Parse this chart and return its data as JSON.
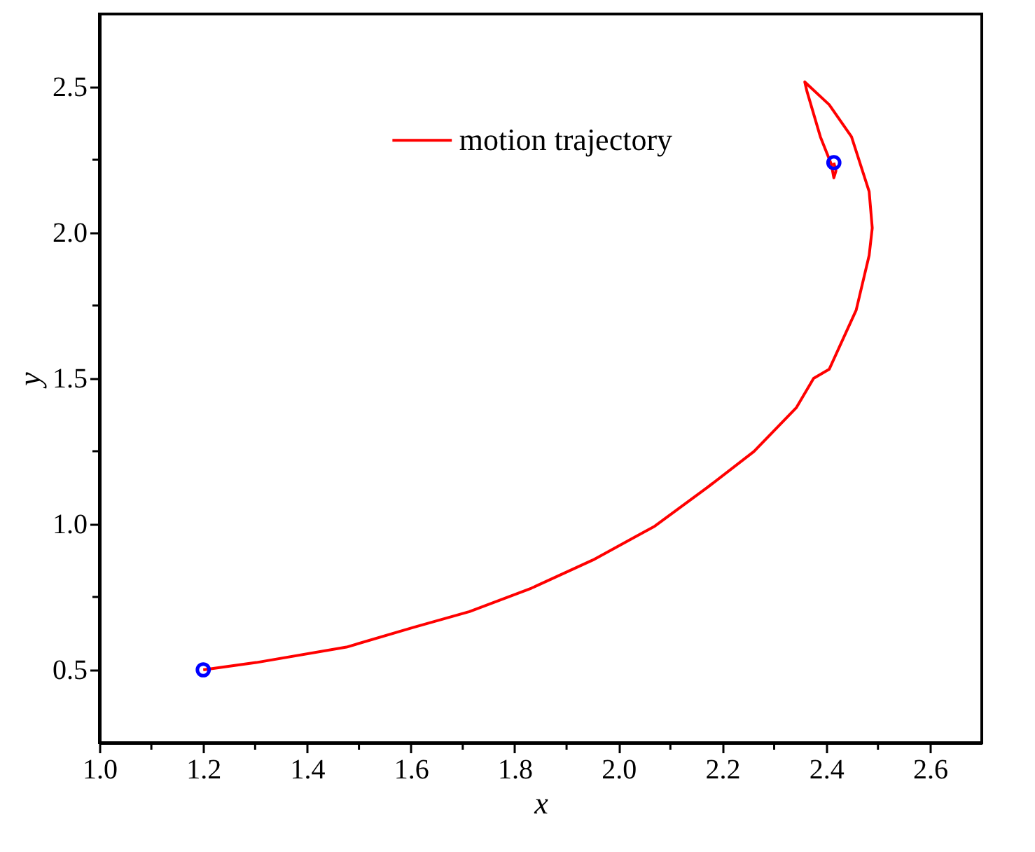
{
  "chart_data": {
    "type": "line",
    "xlabel": "x",
    "ylabel": "y",
    "xlim": [
      1.0,
      2.7
    ],
    "ylim": [
      0.25,
      2.75
    ],
    "xticks": [
      {
        "value": 1.0,
        "label": "1.0"
      },
      {
        "value": 1.1,
        "label": null
      },
      {
        "value": 1.2,
        "label": "1.2"
      },
      {
        "value": 1.3,
        "label": null
      },
      {
        "value": 1.4,
        "label": "1.4"
      },
      {
        "value": 1.5,
        "label": null
      },
      {
        "value": 1.6,
        "label": "1.6"
      },
      {
        "value": 1.7,
        "label": null
      },
      {
        "value": 1.8,
        "label": "1.8"
      },
      {
        "value": 1.9,
        "label": null
      },
      {
        "value": 2.0,
        "label": "2.0"
      },
      {
        "value": 2.1,
        "label": null
      },
      {
        "value": 2.2,
        "label": "2.2"
      },
      {
        "value": 2.3,
        "label": null
      },
      {
        "value": 2.4,
        "label": "2.4"
      },
      {
        "value": 2.5,
        "label": null
      },
      {
        "value": 2.6,
        "label": "2.6"
      }
    ],
    "yticks": [
      {
        "value": 0.5,
        "label": "0.5"
      },
      {
        "value": 0.75,
        "label": null
      },
      {
        "value": 1.0,
        "label": "1.0"
      },
      {
        "value": 1.25,
        "label": null
      },
      {
        "value": 1.5,
        "label": "1.5"
      },
      {
        "value": 1.75,
        "label": null
      },
      {
        "value": 2.0,
        "label": "2.0"
      },
      {
        "value": 2.25,
        "label": null
      },
      {
        "value": 2.5,
        "label": "2.5"
      }
    ],
    "grid": false,
    "legend": "top",
    "series": [
      {
        "name": "motion trajectory",
        "color": "#ff0000",
        "marker": "none",
        "line_style": "solid",
        "x": [
          1.2,
          1.302,
          1.476,
          1.604,
          1.713,
          1.832,
          1.951,
          2.07,
          2.17,
          2.261,
          2.343,
          2.376,
          2.406,
          2.458,
          2.483,
          2.489,
          2.483,
          2.449,
          2.406,
          2.359,
          2.363,
          2.389,
          2.41,
          2.415,
          2.419,
          2.415
        ],
        "values": [
          0.5,
          0.525,
          0.578,
          0.645,
          0.7,
          0.78,
          0.877,
          0.993,
          1.124,
          1.249,
          1.4,
          1.5,
          1.531,
          1.734,
          1.922,
          2.016,
          2.141,
          2.329,
          2.439,
          2.517,
          2.486,
          2.329,
          2.235,
          2.188,
          2.212,
          2.24
        ]
      },
      {
        "type": "scatter",
        "color": "#0000ff",
        "marker": "circle",
        "x": [
          1.2,
          2.415
        ],
        "values": [
          0.5,
          2.24
        ]
      }
    ]
  }
}
